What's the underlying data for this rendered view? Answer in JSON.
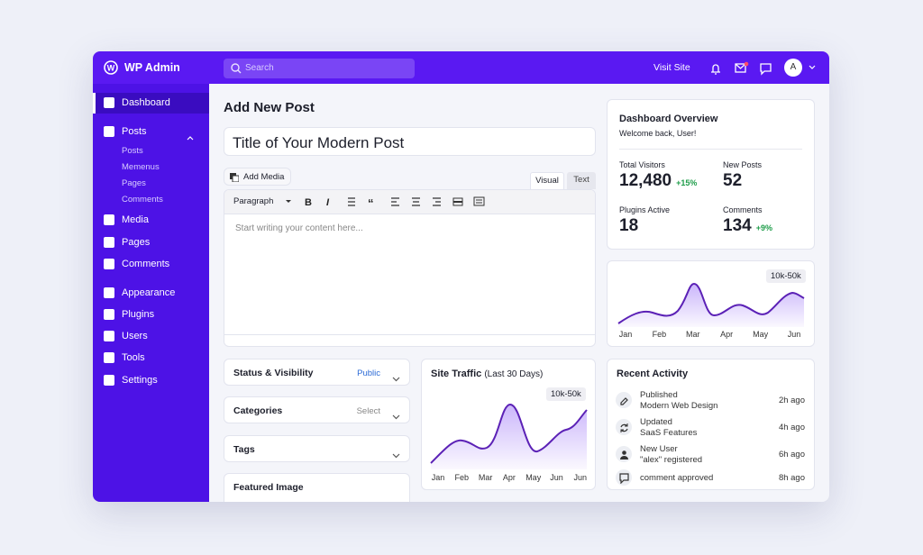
{
  "topbar": {
    "brand": "WP Admin",
    "search": "Search",
    "visit_site": "Visit Site",
    "avatar": "A"
  },
  "sidebar": {
    "items": [
      "Dashboard",
      "Posts",
      "Media",
      "Pages",
      "Comments",
      "Appearance",
      "Plugins",
      "Users",
      "Tools",
      "Settings"
    ],
    "posts_submenu": [
      "Posts",
      "Memenus",
      "Pages",
      "Comments"
    ]
  },
  "editor": {
    "heading": "Add New Post",
    "post_title": "Title of Your Modern Post",
    "add_media": "Add Media",
    "tabs": [
      "Visual",
      "Text"
    ],
    "format": "Paragraph",
    "placeholder": "Start writing your content here..."
  },
  "boxes": [
    {
      "label": "Status & Visibility",
      "value": "Public"
    },
    {
      "label": "Categories",
      "value": "Select"
    },
    {
      "label": "Tags"
    },
    {
      "label": "Featured Image"
    }
  ],
  "traffic": {
    "title": "Site Traffic",
    "subtitle": "(Last 30 Days)",
    "badge": "10k-50k",
    "months": [
      "Jan",
      "Feb",
      "Mar",
      "Apr",
      "May",
      "Jun",
      "Jun"
    ]
  },
  "overview": {
    "title": "Dashboard Overview",
    "welcome": "Welcome back, User!",
    "stats": [
      {
        "label": "Total Visitors",
        "value": "12,480",
        "change": "+15%"
      },
      {
        "label": "New Posts",
        "value": "52"
      },
      {
        "label": "Plugins Active",
        "value": "18"
      },
      {
        "label": "Comments",
        "value": "134",
        "change": "+9%"
      }
    ]
  },
  "mini_chart": {
    "badge": "10k-50k",
    "months": [
      "Jan",
      "Feb",
      "Mar",
      "Apr",
      "May",
      "Jun"
    ]
  },
  "activity": {
    "title": "Recent Activity",
    "items": [
      {
        "title": "Published",
        "detail": "Modern Web Design",
        "time": "2h ago"
      },
      {
        "title": "Updated",
        "detail": "SaaS Features",
        "time": "4h ago"
      },
      {
        "title": "New User",
        "detail": "\"alex\" registered",
        "time": "6h ago"
      },
      {
        "title": "comment approved",
        "time": "8h ago"
      }
    ]
  }
}
